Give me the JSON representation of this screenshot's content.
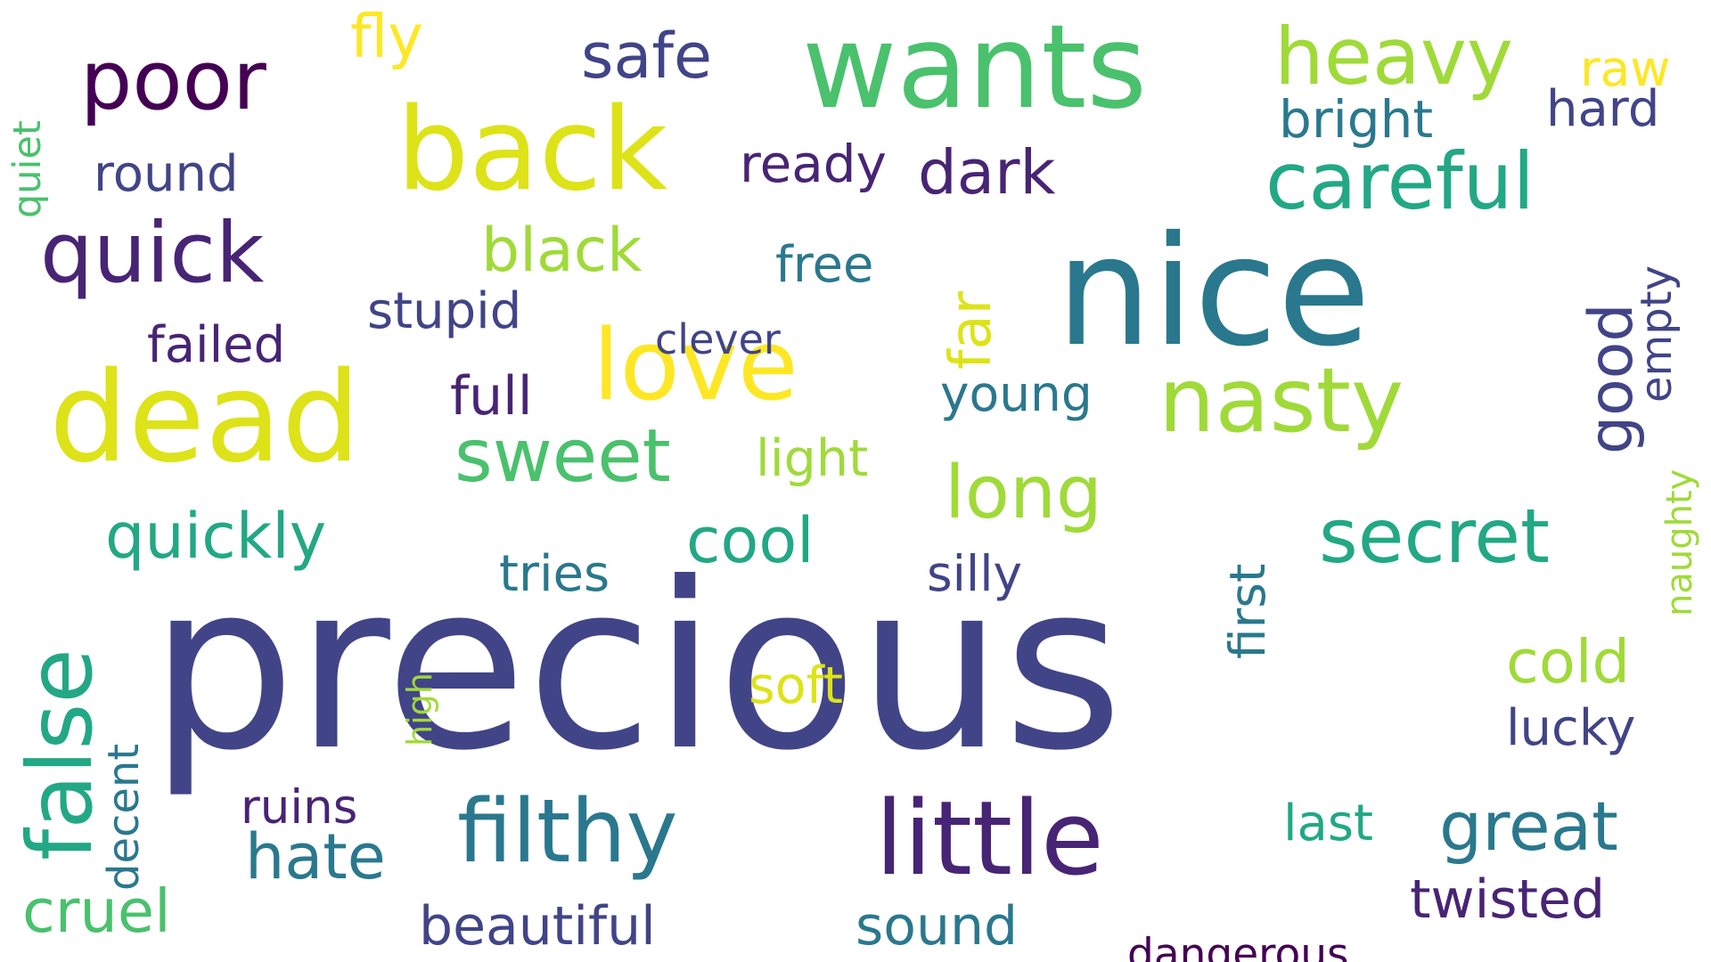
{
  "words": [
    {
      "text": "precious",
      "color": "#414487",
      "orientation": "horizontal"
    },
    {
      "text": "nice",
      "color": "#2a788e",
      "orientation": "horizontal"
    },
    {
      "text": "wants",
      "color": "#4ac16d",
      "orientation": "horizontal"
    },
    {
      "text": "back",
      "color": "#dde318",
      "orientation": "horizontal"
    },
    {
      "text": "dead",
      "color": "#dde318",
      "orientation": "horizontal"
    },
    {
      "text": "little",
      "color": "#482475",
      "orientation": "horizontal"
    },
    {
      "text": "nasty",
      "color": "#a0da39",
      "orientation": "horizontal"
    },
    {
      "text": "love",
      "color": "#fde725",
      "orientation": "horizontal"
    },
    {
      "text": "quick",
      "color": "#482475",
      "orientation": "horizontal"
    },
    {
      "text": "poor",
      "color": "#440154",
      "orientation": "horizontal"
    },
    {
      "text": "filthy",
      "color": "#2a788e",
      "orientation": "horizontal"
    },
    {
      "text": "false",
      "color": "#22a884",
      "orientation": "vertical"
    },
    {
      "text": "heavy",
      "color": "#a0da39",
      "orientation": "horizontal"
    },
    {
      "text": "careful",
      "color": "#22a884",
      "orientation": "horizontal"
    },
    {
      "text": "secret",
      "color": "#22a884",
      "orientation": "horizontal"
    },
    {
      "text": "sweet",
      "color": "#4ac16d",
      "orientation": "horizontal"
    },
    {
      "text": "long",
      "color": "#a0da39",
      "orientation": "horizontal"
    },
    {
      "text": "great",
      "color": "#2a788e",
      "orientation": "horizontal"
    },
    {
      "text": "quickly",
      "color": "#22a884",
      "orientation": "horizontal"
    },
    {
      "text": "hate",
      "color": "#2a788e",
      "orientation": "horizontal"
    },
    {
      "text": "cruel",
      "color": "#4ac16d",
      "orientation": "horizontal"
    },
    {
      "text": "black",
      "color": "#a0da39",
      "orientation": "horizontal"
    },
    {
      "text": "dark",
      "color": "#482475",
      "orientation": "horizontal"
    },
    {
      "text": "cold",
      "color": "#a0da39",
      "orientation": "horizontal"
    },
    {
      "text": "good",
      "color": "#414487",
      "orientation": "vertical"
    },
    {
      "text": "cool",
      "color": "#22a884",
      "orientation": "horizontal"
    },
    {
      "text": "safe",
      "color": "#414487",
      "orientation": "horizontal"
    },
    {
      "text": "fly",
      "color": "#fde725",
      "orientation": "horizontal"
    },
    {
      "text": "far",
      "color": "#dde318",
      "orientation": "vertical"
    },
    {
      "text": "twisted",
      "color": "#482475",
      "orientation": "horizontal"
    },
    {
      "text": "sound",
      "color": "#2a788e",
      "orientation": "horizontal"
    },
    {
      "text": "beautiful",
      "color": "#414487",
      "orientation": "horizontal"
    },
    {
      "text": "ready",
      "color": "#482475",
      "orientation": "horizontal"
    },
    {
      "text": "bright",
      "color": "#2a788e",
      "orientation": "horizontal"
    },
    {
      "text": "lucky",
      "color": "#414487",
      "orientation": "horizontal"
    },
    {
      "text": "hard",
      "color": "#414487",
      "orientation": "horizontal"
    },
    {
      "text": "stupid",
      "color": "#414487",
      "orientation": "horizontal"
    },
    {
      "text": "full",
      "color": "#482475",
      "orientation": "horizontal"
    },
    {
      "text": "young",
      "color": "#2a788e",
      "orientation": "horizontal"
    },
    {
      "text": "silly",
      "color": "#414487",
      "orientation": "horizontal"
    },
    {
      "text": "round",
      "color": "#414487",
      "orientation": "horizontal"
    },
    {
      "text": "failed",
      "color": "#482475",
      "orientation": "horizontal"
    },
    {
      "text": "tries",
      "color": "#2a788e",
      "orientation": "horizontal"
    },
    {
      "text": "free",
      "color": "#2a788e",
      "orientation": "horizontal"
    },
    {
      "text": "light",
      "color": "#a0da39",
      "orientation": "horizontal"
    },
    {
      "text": "soft",
      "color": "#dde318",
      "orientation": "horizontal"
    },
    {
      "text": "ruins",
      "color": "#482475",
      "orientation": "horizontal"
    },
    {
      "text": "last",
      "color": "#22a884",
      "orientation": "horizontal"
    },
    {
      "text": "raw",
      "color": "#fde725",
      "orientation": "horizontal"
    },
    {
      "text": "first",
      "color": "#2a788e",
      "orientation": "vertical"
    },
    {
      "text": "empty",
      "color": "#414487",
      "orientation": "vertical"
    },
    {
      "text": "decent",
      "color": "#2a788e",
      "orientation": "vertical"
    },
    {
      "text": "dangerous",
      "color": "#440154",
      "orientation": "horizontal"
    },
    {
      "text": "clever",
      "color": "#414487",
      "orientation": "horizontal"
    },
    {
      "text": "quiet",
      "color": "#4ac16d",
      "orientation": "vertical"
    },
    {
      "text": "naughty",
      "color": "#a0da39",
      "orientation": "vertical"
    },
    {
      "text": "high",
      "color": "#a0da39",
      "orientation": "vertical"
    }
  ]
}
